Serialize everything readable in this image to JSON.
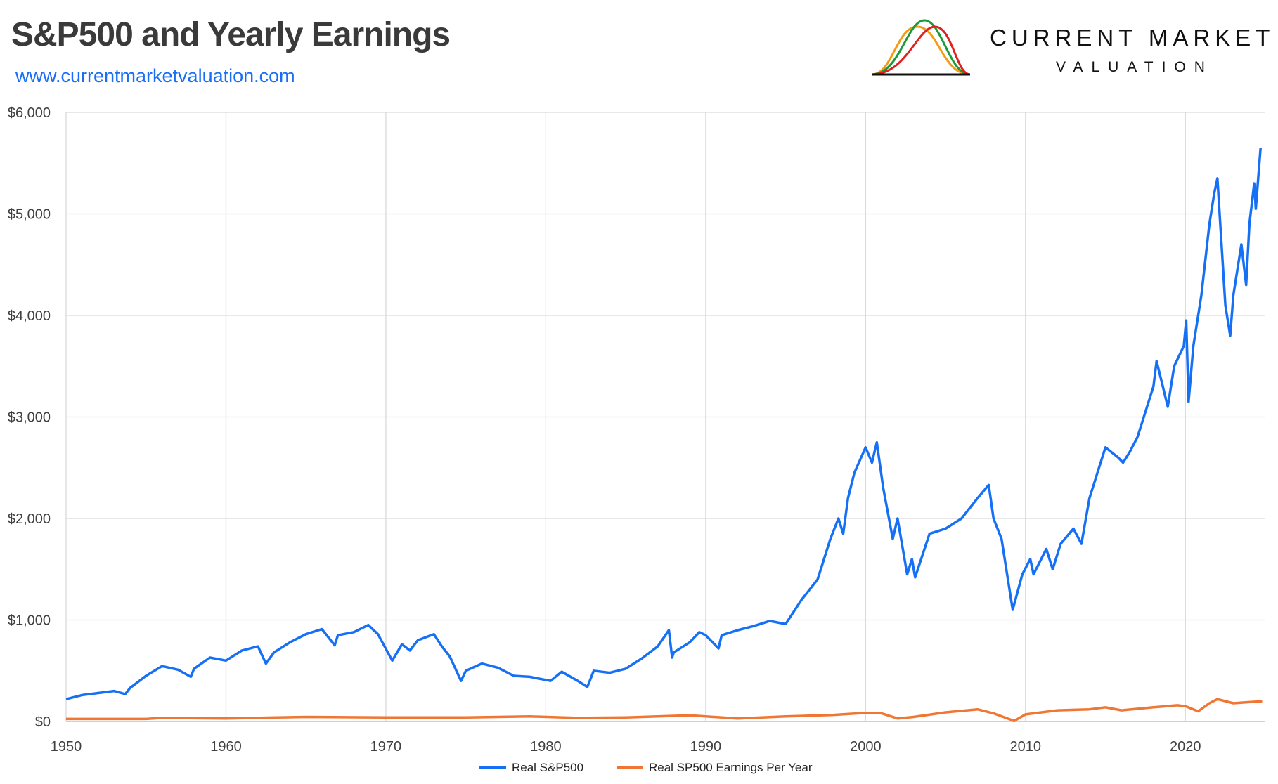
{
  "header": {
    "title": "S&P500 and Yearly Earnings",
    "url": "www.currentmarketvaluation.com"
  },
  "logo": {
    "line1": "CURRENT MARKET",
    "line2": "VALUATION",
    "colors": [
      "#f39c12",
      "#1a9a3a",
      "#e02020"
    ]
  },
  "chart_data": {
    "type": "line",
    "xlim": [
      1950,
      2025
    ],
    "ylim": [
      0,
      6000
    ],
    "grid": true,
    "legend_position": "bottom",
    "x_ticks": [
      "1950",
      "1960",
      "1970",
      "1980",
      "1990",
      "2000",
      "2010",
      "2020"
    ],
    "y_ticks": [
      "$0",
      "$1,000",
      "$2,000",
      "$3,000",
      "$4,000",
      "$5,000",
      "$6,000"
    ],
    "series": [
      {
        "name": "Real S&P500",
        "color": "#1670f5",
        "points": [
          [
            1950,
            220
          ],
          [
            1951,
            260
          ],
          [
            1952,
            280
          ],
          [
            1953,
            300
          ],
          [
            1953.7,
            270
          ],
          [
            1954,
            330
          ],
          [
            1955,
            450
          ],
          [
            1956,
            545
          ],
          [
            1957,
            510
          ],
          [
            1957.8,
            440
          ],
          [
            1958,
            520
          ],
          [
            1959,
            630
          ],
          [
            1960,
            600
          ],
          [
            1961,
            700
          ],
          [
            1962,
            740
          ],
          [
            1962.5,
            570
          ],
          [
            1963,
            680
          ],
          [
            1964,
            780
          ],
          [
            1965,
            860
          ],
          [
            1966,
            910
          ],
          [
            1966.8,
            750
          ],
          [
            1967,
            850
          ],
          [
            1968,
            880
          ],
          [
            1968.9,
            950
          ],
          [
            1969.5,
            860
          ],
          [
            1970.4,
            600
          ],
          [
            1971,
            760
          ],
          [
            1971.5,
            700
          ],
          [
            1972,
            800
          ],
          [
            1973,
            860
          ],
          [
            1973.5,
            740
          ],
          [
            1974,
            640
          ],
          [
            1974.7,
            400
          ],
          [
            1975,
            500
          ],
          [
            1976,
            570
          ],
          [
            1977,
            530
          ],
          [
            1978,
            450
          ],
          [
            1979,
            440
          ],
          [
            1980.3,
            400
          ],
          [
            1981,
            490
          ],
          [
            1982,
            400
          ],
          [
            1982.6,
            340
          ],
          [
            1983,
            500
          ],
          [
            1984,
            480
          ],
          [
            1985,
            520
          ],
          [
            1986,
            620
          ],
          [
            1987,
            740
          ],
          [
            1987.7,
            900
          ],
          [
            1987.9,
            630
          ],
          [
            1988,
            680
          ],
          [
            1989,
            780
          ],
          [
            1989.6,
            880
          ],
          [
            1990,
            850
          ],
          [
            1990.8,
            720
          ],
          [
            1991,
            850
          ],
          [
            1992,
            900
          ],
          [
            1993,
            940
          ],
          [
            1994,
            990
          ],
          [
            1995,
            960
          ],
          [
            1996,
            1200
          ],
          [
            1997,
            1400
          ],
          [
            1997.8,
            1800
          ],
          [
            1998.3,
            2000
          ],
          [
            1998.6,
            1850
          ],
          [
            1998.9,
            2200
          ],
          [
            1999.3,
            2450
          ],
          [
            2000,
            2700
          ],
          [
            2000.4,
            2550
          ],
          [
            2000.7,
            2750
          ],
          [
            2001.1,
            2300
          ],
          [
            2001.7,
            1800
          ],
          [
            2002,
            2000
          ],
          [
            2002.6,
            1450
          ],
          [
            2002.9,
            1600
          ],
          [
            2003.1,
            1420
          ],
          [
            2004,
            1850
          ],
          [
            2005,
            1900
          ],
          [
            2006,
            2000
          ],
          [
            2007,
            2200
          ],
          [
            2007.7,
            2330
          ],
          [
            2008,
            2000
          ],
          [
            2008.5,
            1800
          ],
          [
            2009.2,
            1100
          ],
          [
            2009.8,
            1450
          ],
          [
            2010.3,
            1600
          ],
          [
            2010.5,
            1450
          ],
          [
            2011.3,
            1700
          ],
          [
            2011.7,
            1500
          ],
          [
            2012.2,
            1750
          ],
          [
            2013,
            1900
          ],
          [
            2013.5,
            1750
          ],
          [
            2014,
            2200
          ],
          [
            2015,
            2700
          ],
          [
            2015.8,
            2600
          ],
          [
            2016.1,
            2550
          ],
          [
            2016.5,
            2650
          ],
          [
            2017,
            2800
          ],
          [
            2018,
            3300
          ],
          [
            2018.2,
            3550
          ],
          [
            2018.9,
            3100
          ],
          [
            2019.3,
            3500
          ],
          [
            2019.9,
            3700
          ],
          [
            2020.05,
            3950
          ],
          [
            2020.2,
            3150
          ],
          [
            2020.5,
            3700
          ],
          [
            2021,
            4200
          ],
          [
            2021.5,
            4900
          ],
          [
            2021.8,
            5200
          ],
          [
            2022,
            5350
          ],
          [
            2022.5,
            4100
          ],
          [
            2022.8,
            3800
          ],
          [
            2023,
            4200
          ],
          [
            2023.5,
            4700
          ],
          [
            2023.8,
            4300
          ],
          [
            2024,
            4900
          ],
          [
            2024.3,
            5300
          ],
          [
            2024.4,
            5050
          ],
          [
            2024.7,
            5650
          ]
        ]
      },
      {
        "name": "Real SP500 Earnings Per Year",
        "color": "#ef7733",
        "points": [
          [
            1950,
            25
          ],
          [
            1955,
            25
          ],
          [
            1956,
            35
          ],
          [
            1960,
            30
          ],
          [
            1965,
            45
          ],
          [
            1970,
            40
          ],
          [
            1975,
            40
          ],
          [
            1979,
            50
          ],
          [
            1982,
            35
          ],
          [
            1985,
            40
          ],
          [
            1989,
            60
          ],
          [
            1992,
            30
          ],
          [
            1995,
            50
          ],
          [
            1998,
            65
          ],
          [
            2000,
            85
          ],
          [
            2001,
            80
          ],
          [
            2002,
            30
          ],
          [
            2003,
            45
          ],
          [
            2005,
            90
          ],
          [
            2007,
            120
          ],
          [
            2008,
            80
          ],
          [
            2009.3,
            5
          ],
          [
            2010,
            70
          ],
          [
            2012,
            110
          ],
          [
            2014,
            120
          ],
          [
            2015,
            140
          ],
          [
            2016,
            110
          ],
          [
            2018,
            140
          ],
          [
            2019.5,
            160
          ],
          [
            2020,
            150
          ],
          [
            2020.8,
            100
          ],
          [
            2021.5,
            180
          ],
          [
            2022,
            220
          ],
          [
            2023,
            180
          ],
          [
            2024.8,
            200
          ]
        ]
      }
    ]
  }
}
